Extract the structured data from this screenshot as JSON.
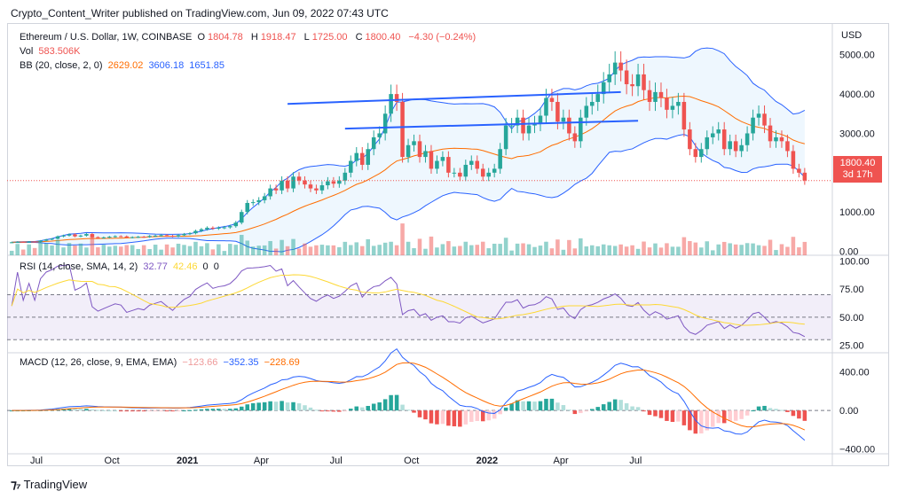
{
  "attribution": "Crypto_Content_Writer published on TradingView.com, Jun 09, 2022 07:43 UTC",
  "header": {
    "symbol": "Ethereum / U.S. Dollar, 1W, COINBASE",
    "o_label": "O",
    "o_value": "1804.78",
    "h_label": "H",
    "h_value": "1918.47",
    "l_label": "L",
    "l_value": "1725.00",
    "c_label": "C",
    "c_value": "1800.40",
    "change": "−4.30 (−0.24%)",
    "vol_label": "Vol",
    "vol_value": "583.506K",
    "bb_label": "BB (20, close, 2, 0)",
    "bb_basis": "2629.02",
    "bb_upper": "3606.18",
    "bb_lower": "1651.85"
  },
  "rsi_legend": {
    "label": "RSI (14, close, SMA, 14, 2)",
    "v1": "32.77",
    "v2": "42.46",
    "v3": "0",
    "v4": "0"
  },
  "macd_legend": {
    "label": "MACD (12, 26, close, 9, EMA, EMA)",
    "v1": "−123.66",
    "v2": "−352.35",
    "v3": "−228.69"
  },
  "axis": {
    "currency": "USD",
    "price_ticks": [
      "5000.00",
      "4000.00",
      "3000.00",
      "2000.00",
      "1000.00",
      "0.00"
    ],
    "rsi_ticks": [
      "100.00",
      "75.00",
      "50.00",
      "25.00"
    ],
    "macd_ticks": [
      "400.00",
      "0.00",
      "−400.00"
    ],
    "x_ticks": [
      "Jul",
      "Oct",
      "2021",
      "Apr",
      "Jul",
      "Oct",
      "2022",
      "Apr",
      "Jul"
    ]
  },
  "last_price": {
    "price": "1800.40",
    "countdown": "3d 17h"
  },
  "footer": {
    "brand": "TradingView"
  },
  "colors": {
    "up": "#26a69a",
    "down": "#ef5350",
    "bb_band": "#2962ff",
    "bb_basis": "#ff6d00",
    "rsi": "#7e57c2",
    "rsi_ma": "#fdd835",
    "macd": "#2962ff",
    "signal": "#ff6d00",
    "trendline": "#2962ff"
  },
  "chart_data": {
    "type": "candlestick",
    "interval": "1W",
    "start": "2020-06-01",
    "closes": [
      230,
      240,
      235,
      245,
      240,
      270,
      300,
      320,
      380,
      400,
      430,
      380,
      400,
      440,
      360,
      340,
      355,
      370,
      385,
      380,
      350,
      360,
      370,
      365,
      390,
      400,
      410,
      395,
      380,
      410,
      440,
      460,
      520,
      560,
      600,
      580,
      600,
      610,
      640,
      730,
      1000,
      1230,
      1250,
      1300,
      1400,
      1600,
      1550,
      1800,
      1600,
      1900,
      1800,
      1700,
      1600,
      1550,
      1680,
      1780,
      1720,
      1800,
      2000,
      2300,
      2500,
      2200,
      2600,
      2900,
      3000,
      3500,
      4000,
      3800,
      2400,
      2700,
      2800,
      2400,
      2550,
      2100,
      2300,
      2400,
      2000,
      2000,
      1900,
      2200,
      2300,
      2100,
      1900,
      2000,
      2100,
      2600,
      3200,
      3200,
      3400,
      3000,
      3200,
      3250,
      3450,
      3900,
      3800,
      3300,
      3400,
      3000,
      2800,
      3400,
      3700,
      3800,
      4000,
      4300,
      4500,
      4800,
      4600,
      4250,
      4200,
      4500,
      4100,
      3800,
      4050,
      3900,
      3600,
      3700,
      3800,
      3100,
      2600,
      2400,
      2600,
      2900,
      3000,
      3100,
      2600,
      2800,
      2550,
      2700,
      3000,
      3400,
      3500,
      3200,
      2800,
      2900,
      2800,
      2550,
      2100,
      2000,
      1800
    ],
    "opens_from_prev_close": true,
    "volume_max_shown": "4x typical",
    "bollinger": {
      "period": 20,
      "stddev": 2,
      "last_basis": 2629.02,
      "last_upper": 3606.18,
      "last_lower": 1651.85
    },
    "rsi": {
      "period": 14,
      "last": 32.77,
      "last_ma": 42.46,
      "levels": [
        70,
        50,
        30
      ]
    },
    "macd": {
      "fast": 12,
      "slow": 26,
      "signal": 9,
      "last_hist": -123.66,
      "last_macd": -352.35,
      "last_signal": -228.69
    },
    "trendlines": [
      {
        "from_date": "2021-05-03",
        "from_price": 3750,
        "to_date": "2022-06-13",
        "to_price": 4050
      },
      {
        "from_date": "2021-07-12",
        "from_price": 3120,
        "to_date": "2022-07-04",
        "to_price": 3320
      }
    ],
    "price_axis": {
      "min": -100,
      "max": 5400
    },
    "rsi_axis": {
      "min": 20,
      "max": 105
    },
    "macd_axis": {
      "min": -450,
      "max": 600
    }
  }
}
